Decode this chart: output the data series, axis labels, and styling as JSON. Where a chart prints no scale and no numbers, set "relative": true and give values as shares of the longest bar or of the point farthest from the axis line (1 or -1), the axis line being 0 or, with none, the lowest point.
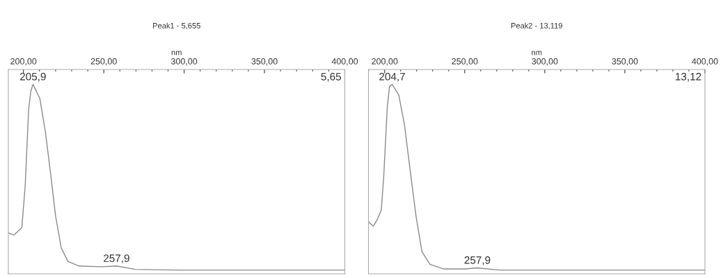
{
  "chart_data": [
    {
      "type": "line",
      "title": "Peak1 - 5,655",
      "xlabel": "nm",
      "relative": true,
      "grid": false,
      "marker": "none",
      "line_style": "solid",
      "tick_labels": "x",
      "xlim": [
        190.6,
        400
      ],
      "xticks": [
        {
          "value": 200,
          "label": "200,00"
        },
        {
          "value": 250,
          "label": "250,00"
        },
        {
          "value": 300,
          "label": "300,00"
        },
        {
          "value": 350,
          "label": "350,00"
        },
        {
          "value": 400,
          "label": "400,00"
        }
      ],
      "series": [
        {
          "color": "#8a8a8a",
          "x": [
            190.6,
            194.1,
            199.0,
            201.1,
            203.2,
            204.6,
            205.9,
            210.2,
            213.7,
            217.2,
            220.0,
            223.5,
            227.7,
            234.7,
            248.7,
            257.9,
            269.7,
            297.7,
            400
          ],
          "values": [
            0.2,
            0.189,
            0.229,
            0.455,
            0.862,
            0.964,
            1,
            0.924,
            0.742,
            0.498,
            0.291,
            0.12,
            0.047,
            0.022,
            0.018,
            0.022,
            0.004,
            0,
            0
          ]
        }
      ],
      "annotations": [
        {
          "text": "205,9",
          "x": 205.9,
          "y": 1
        },
        {
          "text": "257,9",
          "x": 257.9,
          "y": 0.022
        },
        "5,65"
      ]
    },
    {
      "type": "line",
      "title": "Peak2 - 13,119",
      "xlabel": "nm",
      "relative": true,
      "grid": false,
      "marker": "none",
      "line_style": "solid",
      "tick_labels": "x",
      "xlim": [
        189.9,
        400
      ],
      "xticks": [
        {
          "value": 200,
          "label": "200,00"
        },
        {
          "value": 250,
          "label": "250,00"
        },
        {
          "value": 300,
          "label": "300,00"
        },
        {
          "value": 350,
          "label": "350,00"
        },
        {
          "value": 400,
          "label": "400,00"
        }
      ],
      "series": [
        {
          "color": "#8a8a8a",
          "x": [
            189.9,
            192.9,
            195.8,
            197.9,
            199.4,
            201.6,
            203.0,
            204.7,
            208.8,
            212.4,
            216.0,
            219.7,
            223.3,
            228.3,
            237.0,
            250.1,
            257.9,
            271.8,
            400
          ],
          "values": [
            0.26,
            0.236,
            0.279,
            0.324,
            0.497,
            0.87,
            0.987,
            1,
            0.944,
            0.782,
            0.533,
            0.285,
            0.099,
            0.031,
            0.006,
            0.006,
            0.012,
            0,
            0
          ]
        }
      ],
      "annotations": [
        {
          "text": "204,7",
          "x": 204.7,
          "y": 1
        },
        {
          "text": "257,9",
          "x": 257.9,
          "y": 0.012
        },
        "13,12"
      ]
    }
  ]
}
